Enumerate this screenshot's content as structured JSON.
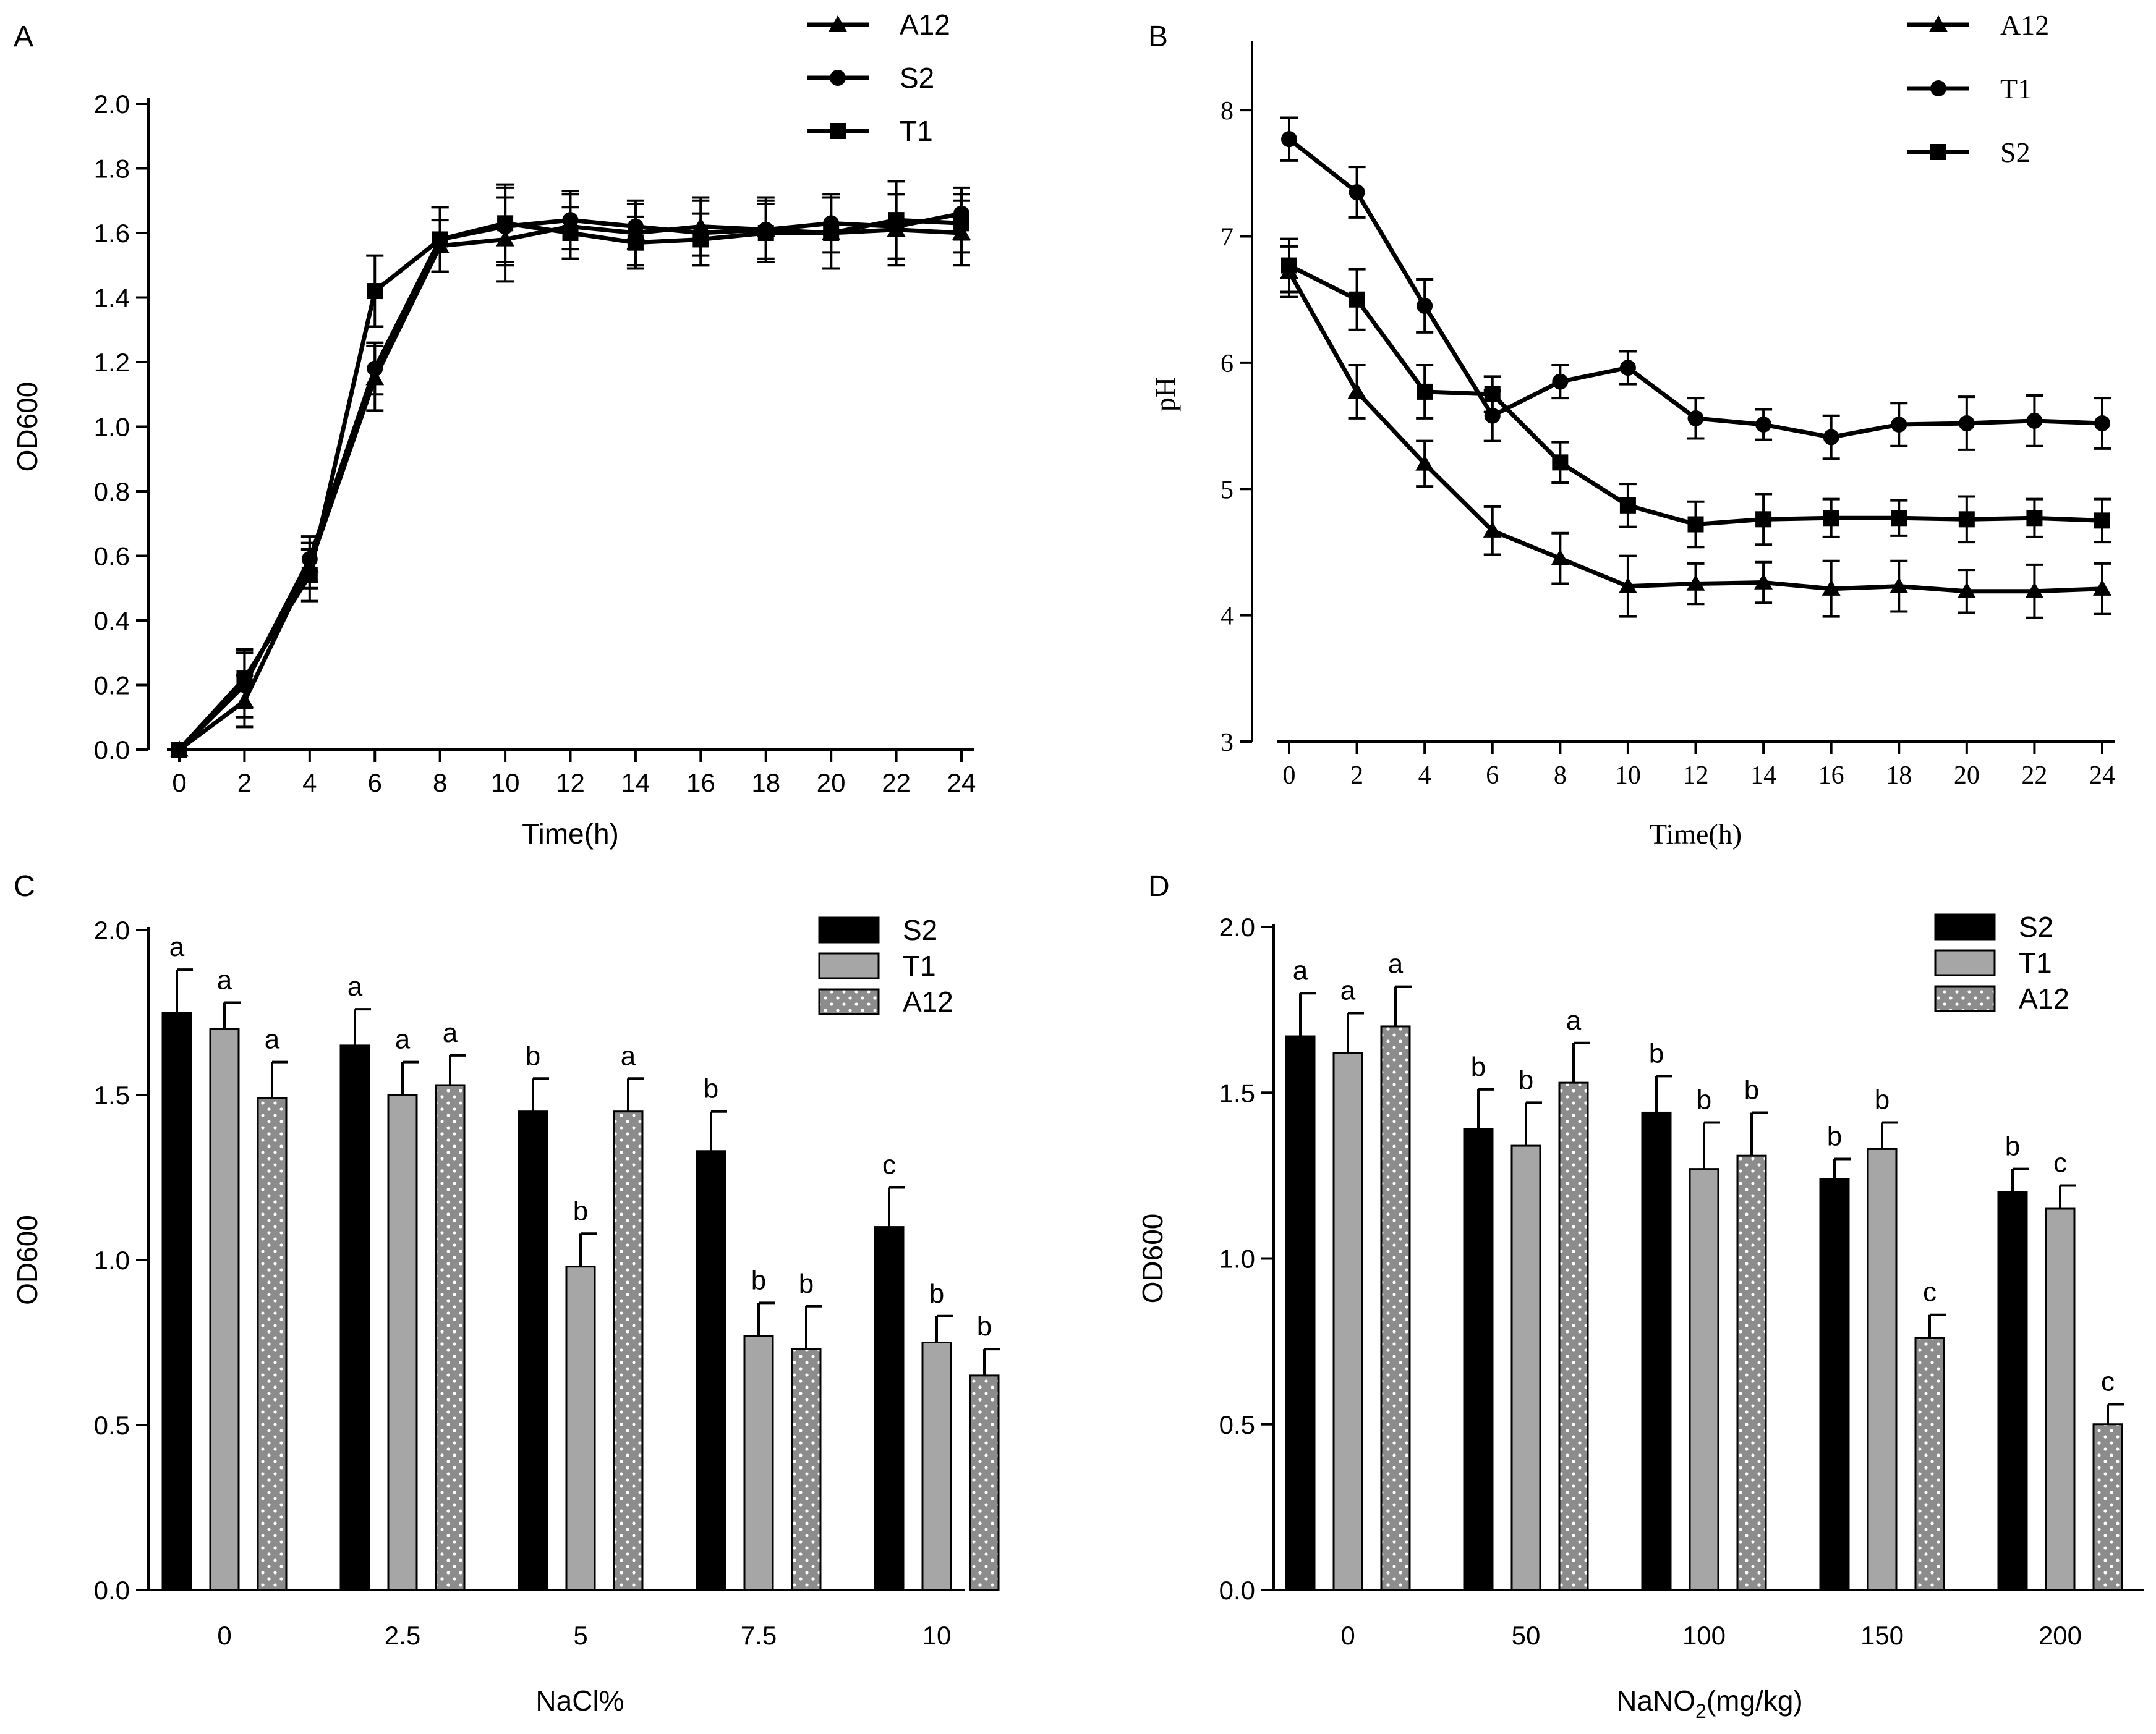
{
  "colors": {
    "ink": "#000000",
    "gray_bar": "#a6a6a6",
    "dotted_bar": "#8c8c8c",
    "dot": "#ffffff",
    "background": "#ffffff"
  },
  "chart_data": [
    {
      "panel": "A",
      "type": "line",
      "xlabel": "Time(h)",
      "ylabel": "OD600",
      "x": [
        0,
        2,
        4,
        6,
        8,
        10,
        12,
        14,
        16,
        18,
        20,
        22,
        24
      ],
      "x_ticks": [
        "0",
        "2",
        "4",
        "6",
        "8",
        "10",
        "12",
        "14",
        "16",
        "18",
        "20",
        "22",
        "24"
      ],
      "ylim": [
        0,
        2.0
      ],
      "y_ticks": [
        "0.0",
        "0.2",
        "0.4",
        "0.6",
        "0.8",
        "1.0",
        "1.2",
        "1.4",
        "1.6",
        "1.8",
        "2.0"
      ],
      "series": [
        {
          "name": "A12",
          "marker": "triangle",
          "values": [
            0,
            0.15,
            0.57,
            1.15,
            1.56,
            1.58,
            1.62,
            1.6,
            1.62,
            1.61,
            1.6,
            1.61,
            1.6
          ],
          "errors": [
            0,
            0.08,
            0.07,
            0.1,
            0.08,
            0.13,
            0.1,
            0.1,
            0.09,
            0.1,
            0.11,
            0.11,
            0.1
          ]
        },
        {
          "name": "S2",
          "marker": "circle",
          "values": [
            0,
            0.2,
            0.59,
            1.18,
            1.58,
            1.62,
            1.64,
            1.62,
            1.6,
            1.61,
            1.63,
            1.62,
            1.66
          ],
          "errors": [
            0,
            0.1,
            0.07,
            0.08,
            0.1,
            0.12,
            0.09,
            0.07,
            0.1,
            0.09,
            0.09,
            0.1,
            0.08
          ]
        },
        {
          "name": "T1",
          "marker": "square",
          "values": [
            0,
            0.22,
            0.54,
            1.42,
            1.58,
            1.63,
            1.6,
            1.57,
            1.58,
            1.6,
            1.6,
            1.64,
            1.63
          ],
          "errors": [
            0,
            0.09,
            0.08,
            0.11,
            0.1,
            0.12,
            0.08,
            0.08,
            0.08,
            0.09,
            0.11,
            0.12,
            0.09
          ]
        }
      ]
    },
    {
      "panel": "B",
      "type": "line",
      "xlabel": "Time(h)",
      "ylabel": "pH",
      "x": [
        0,
        2,
        4,
        6,
        8,
        10,
        12,
        14,
        16,
        18,
        20,
        22,
        24
      ],
      "x_ticks": [
        "0",
        "2",
        "4",
        "6",
        "8",
        "10",
        "12",
        "14",
        "16",
        "18",
        "20",
        "22",
        "24"
      ],
      "ylim": [
        3,
        8.5
      ],
      "y_ticks": [
        "3",
        "4",
        "5",
        "6",
        "7",
        "8"
      ],
      "series": [
        {
          "name": "A12",
          "marker": "triangle",
          "values": [
            6.72,
            5.77,
            5.2,
            4.67,
            4.45,
            4.23,
            4.25,
            4.26,
            4.21,
            4.23,
            4.19,
            4.19,
            4.21
          ],
          "errors": [
            0.2,
            0.21,
            0.18,
            0.19,
            0.2,
            0.24,
            0.16,
            0.16,
            0.22,
            0.2,
            0.17,
            0.21,
            0.2
          ]
        },
        {
          "name": "T1",
          "marker": "circle",
          "values": [
            7.77,
            7.35,
            6.45,
            5.58,
            5.85,
            5.96,
            5.56,
            5.51,
            5.41,
            5.51,
            5.52,
            5.54,
            5.52
          ],
          "errors": [
            0.17,
            0.2,
            0.21,
            0.2,
            0.13,
            0.13,
            0.16,
            0.12,
            0.17,
            0.17,
            0.21,
            0.2,
            0.2
          ]
        },
        {
          "name": "S2",
          "marker": "square",
          "values": [
            6.77,
            6.5,
            5.77,
            5.75,
            5.21,
            4.87,
            4.72,
            4.76,
            4.77,
            4.77,
            4.76,
            4.77,
            4.75
          ],
          "errors": [
            0.21,
            0.24,
            0.21,
            0.14,
            0.16,
            0.17,
            0.18,
            0.2,
            0.15,
            0.14,
            0.18,
            0.15,
            0.17
          ]
        }
      ]
    },
    {
      "panel": "C",
      "type": "bar",
      "xlabel": "NaCl%",
      "ylabel": "OD600",
      "categories": [
        "0",
        "2.5",
        "5",
        "7.5",
        "10"
      ],
      "ylim": [
        0,
        2.0
      ],
      "y_ticks": [
        "0.0",
        "0.5",
        "1.0",
        "1.5",
        "2.0"
      ],
      "series": [
        {
          "name": "S2",
          "style": "black",
          "values": [
            1.75,
            1.65,
            1.45,
            1.33,
            1.1
          ],
          "errors": [
            0.13,
            0.11,
            0.1,
            0.12,
            0.12
          ],
          "letters": [
            "a",
            "a",
            "b",
            "b",
            "c"
          ]
        },
        {
          "name": "T1",
          "style": "gray",
          "values": [
            1.7,
            1.5,
            0.98,
            0.77,
            0.75
          ],
          "errors": [
            0.08,
            0.1,
            0.1,
            0.1,
            0.08
          ],
          "letters": [
            "a",
            "a",
            "b",
            "b",
            "b"
          ]
        },
        {
          "name": "A12",
          "style": "dotted",
          "values": [
            1.49,
            1.53,
            1.45,
            0.73,
            0.65
          ],
          "errors": [
            0.11,
            0.09,
            0.1,
            0.13,
            0.08
          ],
          "letters": [
            "a",
            "a",
            "a",
            "b",
            "b"
          ]
        }
      ]
    },
    {
      "panel": "D",
      "type": "bar",
      "xlabel_main": "NaNO",
      "xlabel_sub": "2",
      "xlabel_tail": "(mg/kg)",
      "ylabel": "OD600",
      "categories": [
        "0",
        "50",
        "100",
        "150",
        "200"
      ],
      "ylim": [
        0,
        2.0
      ],
      "y_ticks": [
        "0.0",
        "0.5",
        "1.0",
        "1.5",
        "2.0"
      ],
      "series": [
        {
          "name": "S2",
          "style": "black",
          "values": [
            1.67,
            1.39,
            1.44,
            1.24,
            1.2
          ],
          "errors": [
            0.13,
            0.12,
            0.11,
            0.06,
            0.07
          ],
          "letters": [
            "a",
            "b",
            "b",
            "b",
            "b"
          ]
        },
        {
          "name": "T1",
          "style": "gray",
          "values": [
            1.62,
            1.34,
            1.27,
            1.33,
            1.15
          ],
          "errors": [
            0.12,
            0.13,
            0.14,
            0.08,
            0.07
          ],
          "letters": [
            "a",
            "b",
            "b",
            "b",
            "c"
          ]
        },
        {
          "name": "A12",
          "style": "dotted",
          "values": [
            1.7,
            1.53,
            1.31,
            0.76,
            0.5
          ],
          "errors": [
            0.12,
            0.12,
            0.13,
            0.07,
            0.06
          ],
          "letters": [
            "a",
            "a",
            "b",
            "c",
            "c"
          ]
        }
      ]
    }
  ]
}
